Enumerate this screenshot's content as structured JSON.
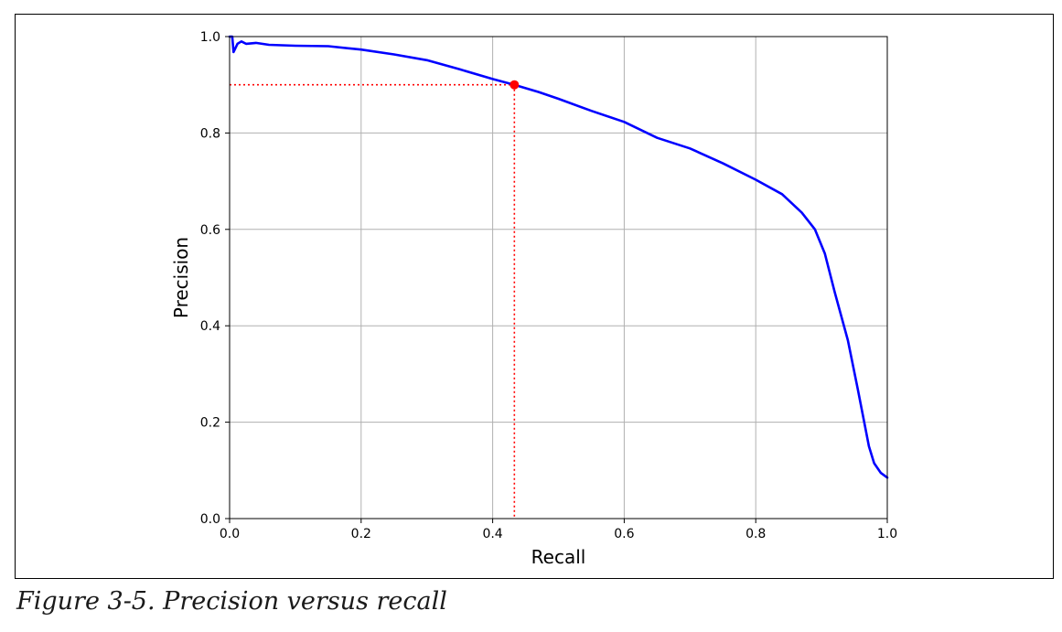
{
  "caption": "Figure 3-5. Precision versus recall",
  "chart_data": {
    "type": "line",
    "title": "",
    "xlabel": "Recall",
    "ylabel": "Precision",
    "xlim": [
      0.0,
      1.0
    ],
    "ylim": [
      0.0,
      1.0
    ],
    "xticks": [
      "0.0",
      "0.2",
      "0.4",
      "0.6",
      "0.8",
      "1.0"
    ],
    "yticks": [
      "0.0",
      "0.2",
      "0.4",
      "0.6",
      "0.8",
      "1.0"
    ],
    "grid": true,
    "legend": "none",
    "series": [
      {
        "color": "#0000ff",
        "x": [
          0.0,
          0.004,
          0.006,
          0.012,
          0.018,
          0.025,
          0.04,
          0.06,
          0.1,
          0.15,
          0.2,
          0.25,
          0.3,
          0.35,
          0.4,
          0.433,
          0.47,
          0.5,
          0.55,
          0.6,
          0.65,
          0.7,
          0.75,
          0.8,
          0.84,
          0.87,
          0.89,
          0.905,
          0.92,
          0.94,
          0.955,
          0.965,
          0.972,
          0.98,
          0.99,
          1.0
        ],
        "y": [
          1.0,
          1.0,
          0.968,
          0.985,
          0.99,
          0.985,
          0.987,
          0.983,
          0.981,
          0.98,
          0.973,
          0.963,
          0.951,
          0.932,
          0.912,
          0.9,
          0.885,
          0.871,
          0.846,
          0.823,
          0.79,
          0.768,
          0.737,
          0.703,
          0.673,
          0.635,
          0.6,
          0.55,
          0.47,
          0.37,
          0.27,
          0.2,
          0.15,
          0.115,
          0.095,
          0.085
        ]
      }
    ],
    "annotations": {
      "point": {
        "x": 0.433,
        "y": 0.9,
        "color": "#ff0000"
      },
      "guide_color": "#ff0000"
    }
  }
}
